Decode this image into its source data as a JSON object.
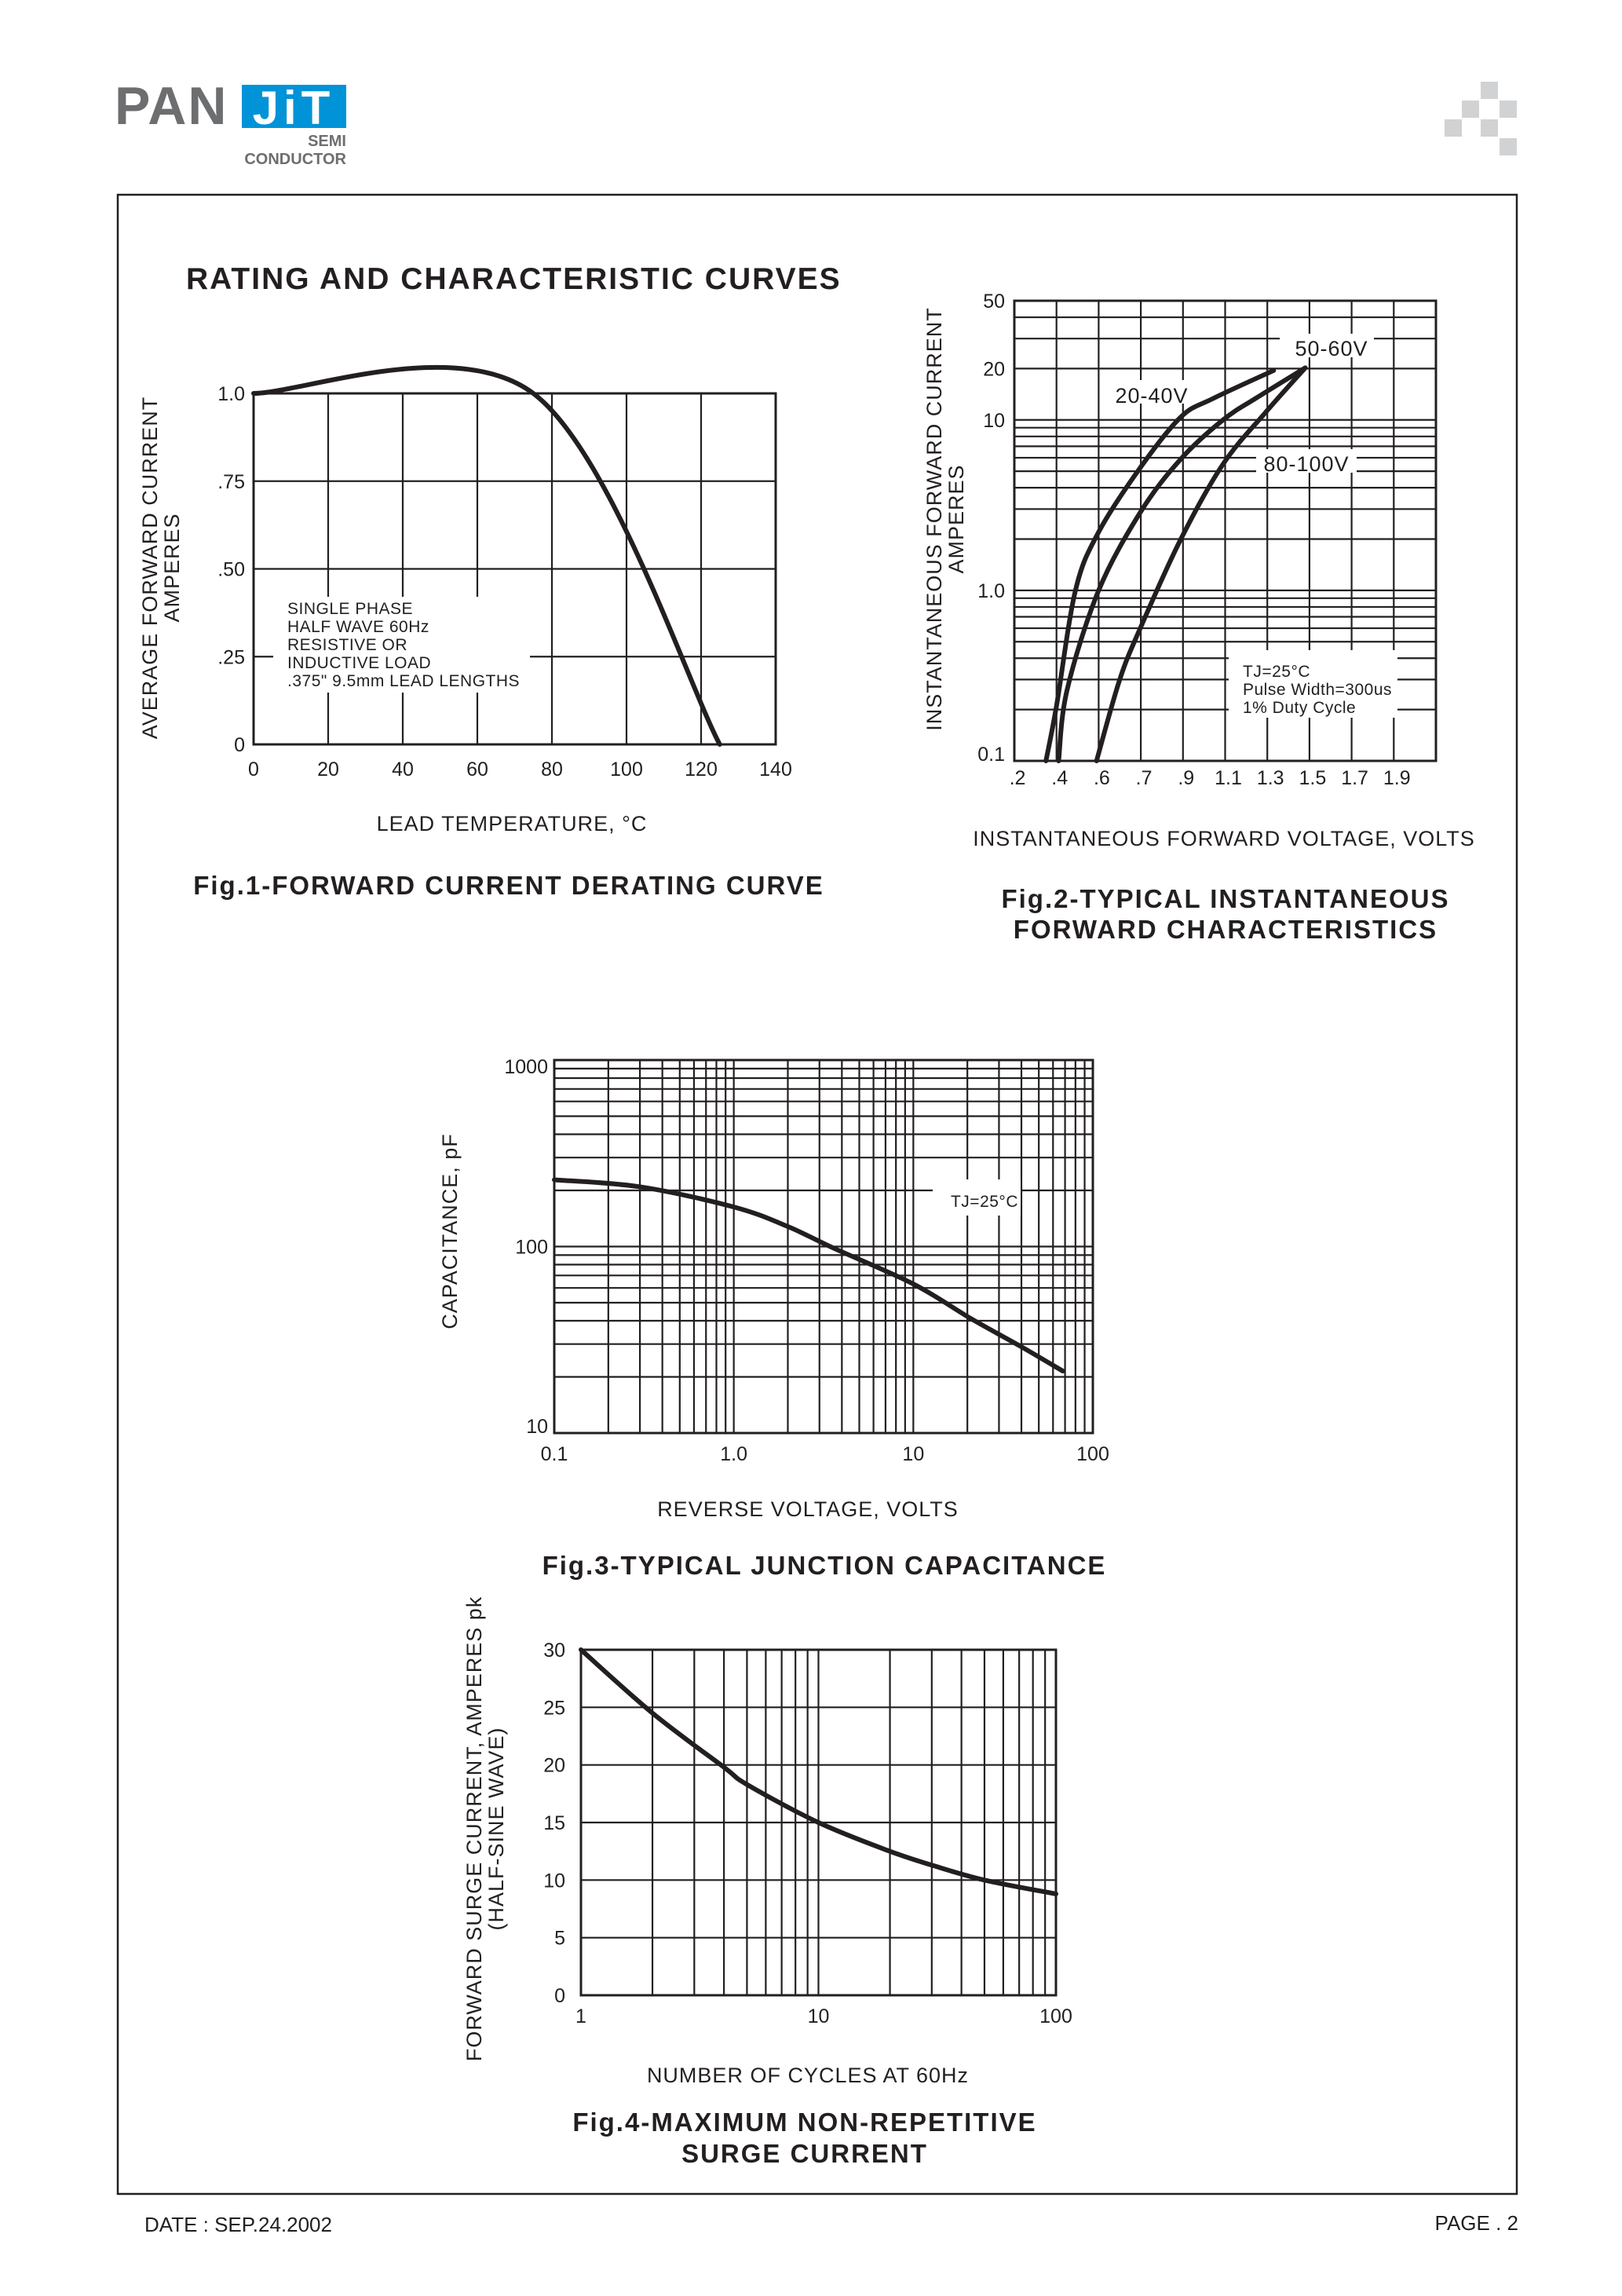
{
  "header": {
    "logo": {
      "pan": "PAN",
      "jit": "JiT",
      "semi": "SEMI",
      "conductor": "CONDUCTOR",
      "brand_blue": "#0093d8",
      "brand_gray": "#6d6e70"
    },
    "decoration": "checker-squares"
  },
  "page_title": "RATING AND CHARACTERISTIC CURVES",
  "footer": {
    "date": "DATE : SEP.24.2002",
    "page": "PAGE . 2"
  },
  "chart_data": [
    {
      "type": "line",
      "title": "Fig.1-FORWARD CURRENT DERATING CURVE",
      "xlabel": "LEAD TEMPERATURE, °C",
      "ylabel": [
        "AVERAGE FORWARD CURRENT",
        "AMPERES"
      ],
      "x_ticks": [
        "0",
        "20",
        "40",
        "60",
        "80",
        "100",
        "120",
        "140"
      ],
      "y_ticks": [
        "0",
        ".25",
        ".50",
        ".75",
        "1.0"
      ],
      "xlim": [
        0,
        140
      ],
      "ylim": [
        0,
        1.0
      ],
      "grid": true,
      "annotation": [
        "SINGLE PHASE",
        "HALF WAVE 60Hz",
        "RESISTIVE OR",
        "INDUCTIVE LOAD",
        ".375\"  9.5mm LEAD LENGTHS"
      ],
      "series": [
        {
          "x": [
            0,
            75,
            125
          ],
          "y": [
            1.0,
            1.0,
            0
          ]
        }
      ]
    },
    {
      "type": "line",
      "title": [
        "Fig.2-TYPICAL INSTANTANEOUS",
        "FORWARD CHARACTERISTICS"
      ],
      "xlabel": "INSTANTANEOUS FORWARD VOLTAGE, VOLTS",
      "ylabel": [
        "INSTANTANEOUS FORWARD CURRENT",
        "AMPERES"
      ],
      "x_ticks": [
        ".2",
        ".4",
        ".6",
        ".7",
        ".9",
        "1.1",
        "1.3",
        "1.5",
        "1.7",
        "1.9"
      ],
      "y_ticks": [
        "0.1",
        "1.0",
        "10",
        "20",
        "50"
      ],
      "ylim": [
        0.1,
        50
      ],
      "y_scale": "log",
      "grid": true,
      "annotation": [
        "TJ=25°C",
        "Pulse Width=300us",
        "1% Duty Cycle"
      ],
      "series": [
        {
          "name": "20-40V",
          "x": [
            0.35,
            0.4,
            0.49,
            0.6,
            0.7,
            0.89,
            1.04,
            1.33
          ],
          "y": [
            0.1,
            0.21,
            1.0,
            2.2,
            5.3,
            10.4,
            13.3,
            19.5
          ]
        },
        {
          "name": "50-60V",
          "x": [
            0.41,
            0.45,
            0.6,
            0.7,
            0.89,
            1.09,
            1.25,
            1.48
          ],
          "y": [
            0.1,
            0.26,
            1.0,
            2.9,
            5.9,
            10,
            13.5,
            20.2
          ]
        },
        {
          "name": "80-100V",
          "x": [
            0.59,
            0.65,
            0.7,
            0.89,
            1.09,
            1.29,
            1.48
          ],
          "y": [
            0.1,
            0.3,
            0.61,
            2.0,
            5.5,
            11,
            20.2
          ]
        }
      ]
    },
    {
      "type": "line",
      "title": "Fig.3-TYPICAL JUNCTION CAPACITANCE",
      "xlabel": "REVERSE VOLTAGE, VOLTS",
      "ylabel": "CAPACITANCE, pF",
      "x_ticks": [
        "0.1",
        "1.0",
        "10",
        "100"
      ],
      "y_ticks": [
        "10",
        "100",
        "1000"
      ],
      "xlim": [
        0.1,
        100
      ],
      "ylim": [
        10,
        1000
      ],
      "x_scale": "log",
      "y_scale": "log",
      "grid": true,
      "annotation": "TJ=25°C",
      "series": [
        {
          "x": [
            0.1,
            0.3,
            1.0,
            2.0,
            3.6,
            10,
            21,
            40,
            68
          ],
          "y": [
            228,
            209,
            163,
            128,
            98,
            63,
            41,
            29,
            21.5
          ]
        }
      ]
    },
    {
      "type": "line",
      "title": [
        "Fig.4-MAXIMUM NON-REPETITIVE",
        "SURGE CURRENT"
      ],
      "xlabel": "NUMBER OF CYCLES AT 60Hz",
      "ylabel": [
        "FORWARD SURGE CURRENT, AMPERES pk",
        "(HALF-SINE WAVE)"
      ],
      "x_ticks": [
        "1",
        "10",
        "100"
      ],
      "y_ticks": [
        "0",
        "5",
        "10",
        "15",
        "20",
        "25",
        "30"
      ],
      "xlim": [
        1,
        100
      ],
      "ylim": [
        0,
        30
      ],
      "x_scale": "log",
      "grid": true,
      "series": [
        {
          "x": [
            1,
            2,
            4,
            5,
            10,
            20,
            30,
            50,
            100
          ],
          "y": [
            30,
            24.5,
            19.8,
            18.3,
            15,
            12.5,
            11.3,
            10,
            8.8
          ]
        }
      ]
    }
  ]
}
